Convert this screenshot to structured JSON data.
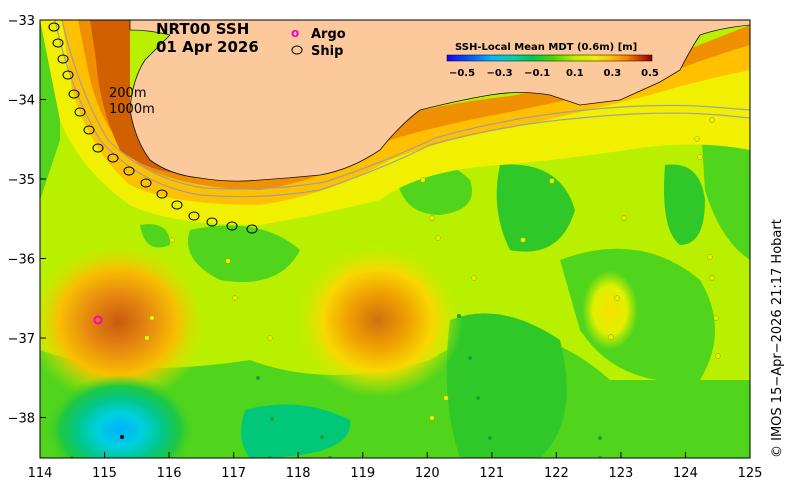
{
  "title": {
    "line1": "NRT00 SSH",
    "line2": "01 Apr 2026"
  },
  "legend": {
    "argo_symbol": "o",
    "argo_label": "Argo",
    "ship_label": "Ship"
  },
  "colorbar": {
    "title": "SSH-Local Mean MDT (0.6m) [m]",
    "ticks": [
      "−0.5",
      "−0.3",
      "−0.1",
      "0.1",
      "0.3",
      "0.5"
    ],
    "colors": [
      "#1b00ff",
      "#0060ff",
      "#00b0ff",
      "#00d8d0",
      "#00c878",
      "#00d020",
      "#70e000",
      "#c8f000",
      "#f0f000",
      "#ffd000",
      "#ffa000",
      "#e06000",
      "#b03000",
      "#800000"
    ]
  },
  "isobaths": {
    "shallow": "200m",
    "deep": "1000m"
  },
  "axes": {
    "x_ticks": [
      "114",
      "115",
      "116",
      "117",
      "118",
      "119",
      "120",
      "121",
      "122",
      "123",
      "124",
      "125"
    ],
    "y_ticks": [
      "−33",
      "−34",
      "−35",
      "−36",
      "−37",
      "−38"
    ]
  },
  "credit": "© IMOS 15−Apr−2026 21:17 Hobart",
  "colors": {
    "land": "#fbc99b",
    "green": "#50d41c",
    "yellow_green": "#b8f000",
    "orange": "#f0a000",
    "dark_orange": "#c06010",
    "cyan": "#00c8f0",
    "argo": "#ff00c0"
  }
}
